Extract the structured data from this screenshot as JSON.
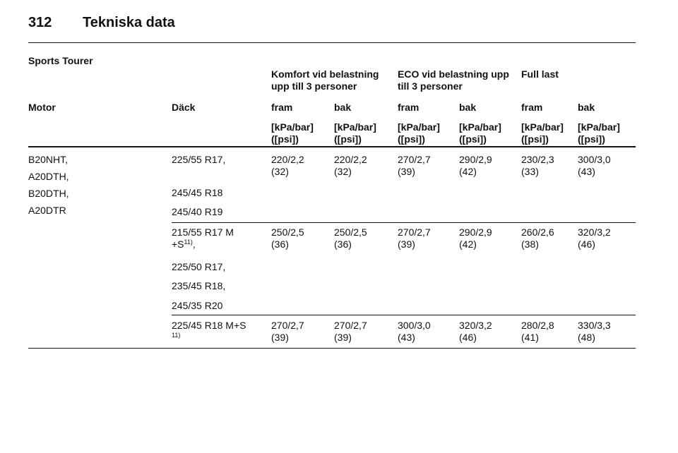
{
  "header": {
    "page_number": "312",
    "title": "Tekniska data"
  },
  "section": "Sports Tourer",
  "group_headers": [
    {
      "lines": [
        "Komfort vid belastning",
        "upp till 3 personer"
      ]
    },
    {
      "lines": [
        "ECO vid belastning upp",
        "till 3 personer"
      ]
    },
    {
      "lines": [
        "Full last"
      ]
    }
  ],
  "columns": [
    "Motor",
    "Däck",
    "fram",
    "bak",
    "fram",
    "bak",
    "fram",
    "bak"
  ],
  "units": [
    [
      "[kPa/bar]",
      "([psi])"
    ],
    [
      "[kPa/bar]",
      "([psi])"
    ],
    [
      "[kPa/bar]",
      "([psi])"
    ],
    [
      "[kPa/bar]",
      "([psi])"
    ],
    [
      "[kPa/bar]",
      "([psi])"
    ],
    [
      "[kPa/bar]",
      "([psi])"
    ]
  ],
  "motors": [
    "B20NHT,",
    "A20DTH,",
    "B20DTH,",
    "A20DTR"
  ],
  "rows": [
    {
      "tires": [
        {
          "lines": [
            "225/55 R17,"
          ]
        },
        {
          "lines": [
            "245/45 R18"
          ]
        },
        {
          "lines": [
            "245/40 R19"
          ]
        }
      ],
      "values": [
        [
          "220/2,2",
          "(32)"
        ],
        [
          "220/2,2",
          "(32)"
        ],
        [
          "270/2,7",
          "(39)"
        ],
        [
          "290/2,9",
          "(42)"
        ],
        [
          "230/2,3",
          "(33)"
        ],
        [
          "300/3,0",
          "(43)"
        ]
      ]
    },
    {
      "tires": [
        {
          "lines": [
            "215/55 R17 M",
            "+S"
          ],
          "note": "11)",
          "suffix": ","
        },
        {
          "lines": [
            "225/50 R17,"
          ]
        },
        {
          "lines": [
            "235/45 R18,"
          ]
        },
        {
          "lines": [
            "245/35 R20"
          ]
        }
      ],
      "values": [
        [
          "250/2,5",
          "(36)"
        ],
        [
          "250/2,5",
          "(36)"
        ],
        [
          "270/2,7",
          "(39)"
        ],
        [
          "290/2,9",
          "(42)"
        ],
        [
          "260/2,6",
          "(38)"
        ],
        [
          "320/3,2",
          "(46)"
        ]
      ]
    },
    {
      "tires": [
        {
          "lines": [
            "225/45 R18 M+S"
          ],
          "note": "11)",
          "note_below": true
        }
      ],
      "values": [
        [
          "270/2,7",
          "(39)"
        ],
        [
          "270/2,7",
          "(39)"
        ],
        [
          "300/3,0",
          "(43)"
        ],
        [
          "320/3,2",
          "(46)"
        ],
        [
          "280/2,8",
          "(41)"
        ],
        [
          "330/3,3",
          "(48)"
        ]
      ]
    }
  ]
}
